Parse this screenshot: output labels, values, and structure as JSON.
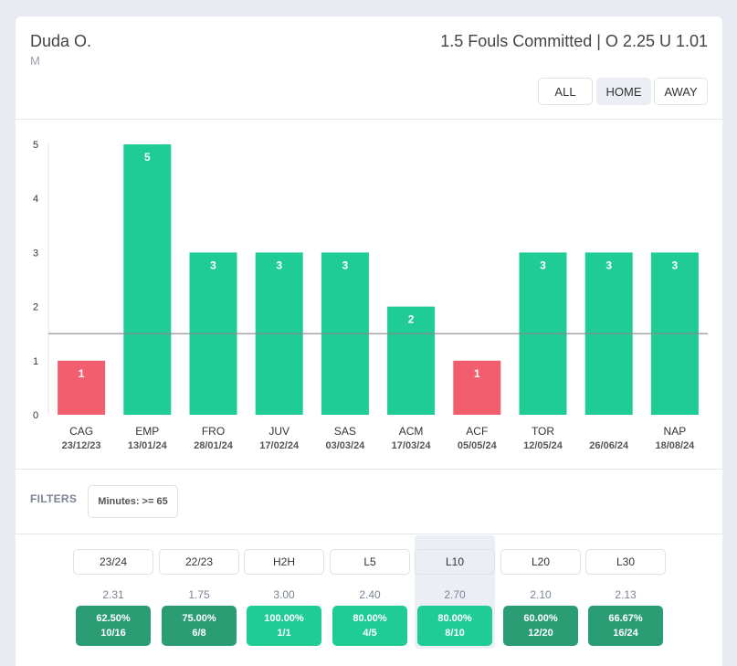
{
  "header": {
    "player_name": "Duda O.",
    "player_position": "M",
    "market": "1.5 Fouls Committed | O 2.25 U 1.01"
  },
  "venue_toggle": {
    "options": [
      "ALL",
      "HOME",
      "AWAY"
    ],
    "selected": "HOME"
  },
  "chart_data": {
    "type": "bar",
    "categories": [
      "CAG",
      "EMP",
      "FRO",
      "JUV",
      "SAS",
      "ACM",
      "ACF",
      "TOR",
      "",
      "NAP"
    ],
    "dates": [
      "23/12/23",
      "13/01/24",
      "28/01/24",
      "17/02/24",
      "03/03/24",
      "17/03/24",
      "05/05/24",
      "12/05/24",
      "26/06/24",
      "18/08/24"
    ],
    "values": [
      1,
      5,
      3,
      3,
      3,
      2,
      1,
      3,
      3,
      3
    ],
    "line": 1.5,
    "ylim": [
      0,
      5
    ],
    "yticks": [
      0,
      1,
      2,
      3,
      4,
      5
    ],
    "colors": {
      "over": "#1fcc96",
      "under": "#f25e6d",
      "line": "#888888"
    }
  },
  "filters": {
    "label": "FILTERS",
    "chips": [
      "Minutes: >= 65"
    ]
  },
  "periods": [
    {
      "label": "23/24",
      "avg": "2.31",
      "pct": "62.50%",
      "ratio": "10/16",
      "color": "#2a9d74"
    },
    {
      "label": "22/23",
      "avg": "1.75",
      "pct": "75.00%",
      "ratio": "6/8",
      "color": "#2a9d74"
    },
    {
      "label": "H2H",
      "avg": "3.00",
      "pct": "100.00%",
      "ratio": "1/1",
      "color": "#1fcc96"
    },
    {
      "label": "L5",
      "avg": "2.40",
      "pct": "80.00%",
      "ratio": "4/5",
      "color": "#1fcc96"
    },
    {
      "label": "L10",
      "avg": "2.70",
      "pct": "80.00%",
      "ratio": "8/10",
      "color": "#1fcc96",
      "active": true
    },
    {
      "label": "L20",
      "avg": "2.10",
      "pct": "60.00%",
      "ratio": "12/20",
      "color": "#2a9d74"
    },
    {
      "label": "L30",
      "avg": "2.13",
      "pct": "66.67%",
      "ratio": "16/24",
      "color": "#2a9d74"
    }
  ]
}
